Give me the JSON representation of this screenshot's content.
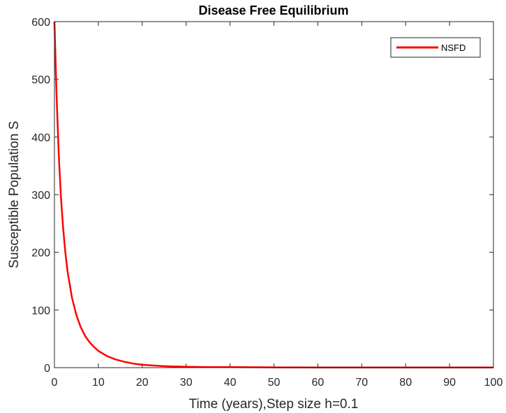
{
  "chart_data": {
    "type": "line",
    "title": "Disease Free Equilibrium",
    "xlabel": "Time (years),Step size h=0.1",
    "ylabel": "Susceptible Population S",
    "xlim": [
      0,
      100
    ],
    "ylim": [
      0,
      600
    ],
    "xticks": [
      0,
      10,
      20,
      30,
      40,
      50,
      60,
      70,
      80,
      90,
      100
    ],
    "yticks": [
      0,
      100,
      200,
      300,
      400,
      500,
      600
    ],
    "grid": false,
    "legend": {
      "position": "top-right"
    },
    "series": [
      {
        "name": "NSFD",
        "color": "#ff0000",
        "x": [
          0,
          0.5,
          1,
          1.5,
          2,
          2.5,
          3,
          4,
          5,
          6,
          7,
          8,
          9,
          10,
          12,
          14,
          16,
          18,
          20,
          25,
          30,
          35,
          40,
          50,
          60,
          70,
          80,
          90,
          100
        ],
        "y": [
          600,
          470,
          366,
          294,
          240,
          199,
          166,
          121,
          91,
          70,
          55,
          44,
          36,
          29,
          20,
          14,
          10,
          7,
          5,
          2.5,
          1.5,
          1,
          0.8,
          0.5,
          0.4,
          0.3,
          0.3,
          0.3,
          0.3
        ]
      }
    ]
  }
}
